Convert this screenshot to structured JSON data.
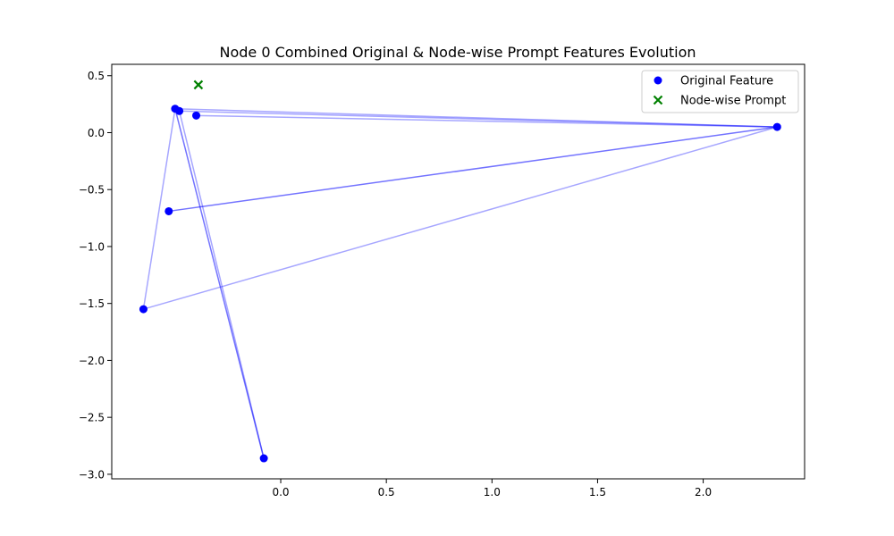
{
  "chart_data": {
    "type": "scatter",
    "title": "Node 0 Combined Original & Node-wise Prompt Features Evolution",
    "xlabel": "",
    "ylabel": "",
    "xlim": [
      -0.8,
      2.48
    ],
    "ylim": [
      -3.04,
      0.6
    ],
    "x_ticks": [
      0.0,
      0.5,
      1.0,
      1.5,
      2.0
    ],
    "x_tick_labels": [
      "0.0",
      "0.5",
      "1.0",
      "1.5",
      "2.0"
    ],
    "y_ticks": [
      0.5,
      0.0,
      -0.5,
      -1.0,
      -1.5,
      -2.0,
      -2.5,
      -3.0
    ],
    "y_tick_labels": [
      "0.5",
      "0.0",
      "−0.5",
      "−1.0",
      "−1.5",
      "−2.0",
      "−2.5",
      "−3.0"
    ],
    "grid": false,
    "legend_position": "top-right",
    "series": [
      {
        "name": "Original Feature",
        "marker": "circle",
        "color": "#0000ff",
        "points": [
          {
            "x": -0.5,
            "y": 0.21
          },
          {
            "x": -0.48,
            "y": 0.19
          },
          {
            "x": -0.4,
            "y": 0.15
          },
          {
            "x": 2.35,
            "y": 0.05
          },
          {
            "x": -0.53,
            "y": -0.69
          },
          {
            "x": -0.65,
            "y": -1.55
          },
          {
            "x": -0.08,
            "y": -2.86
          }
        ]
      },
      {
        "name": "Node-wise Prompt",
        "marker": "x",
        "color": "#008000",
        "points": [
          {
            "x": -0.39,
            "y": 0.42
          }
        ]
      }
    ],
    "connection_lines": {
      "color": "#0000ff",
      "segments": [
        {
          "from": [
            -0.5,
            0.21
          ],
          "to": [
            2.35,
            0.05
          ],
          "alpha": 0.35
        },
        {
          "from": [
            -0.48,
            0.19
          ],
          "to": [
            2.35,
            0.05
          ],
          "alpha": 0.35
        },
        {
          "from": [
            -0.4,
            0.15
          ],
          "to": [
            2.35,
            0.05
          ],
          "alpha": 0.35
        },
        {
          "from": [
            -0.53,
            -0.69
          ],
          "to": [
            2.35,
            0.05
          ],
          "alpha": 0.55
        },
        {
          "from": [
            -0.65,
            -1.55
          ],
          "to": [
            2.35,
            0.05
          ],
          "alpha": 0.35
        },
        {
          "from": [
            -0.65,
            -1.55
          ],
          "to": [
            -0.5,
            0.21
          ],
          "alpha": 0.35
        },
        {
          "from": [
            -0.5,
            0.21
          ],
          "to": [
            -0.08,
            -2.86
          ],
          "alpha": 0.55
        },
        {
          "from": [
            -0.48,
            0.19
          ],
          "to": [
            -0.08,
            -2.86
          ],
          "alpha": 0.35
        }
      ]
    }
  }
}
